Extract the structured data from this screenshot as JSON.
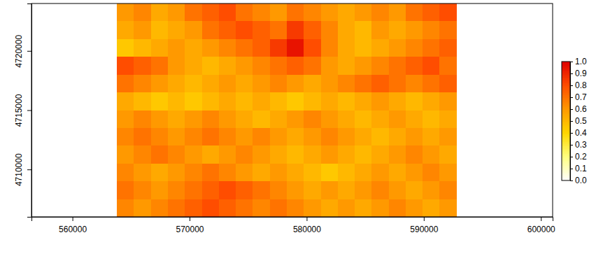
{
  "chart_data": {
    "type": "heatmap",
    "xlim": [
      556500,
      601000
    ],
    "ylim": [
      4706000,
      4724000
    ],
    "xticks": [
      560000,
      570000,
      580000,
      590000,
      600000
    ],
    "yticks": [
      4710000,
      4715000,
      4720000
    ],
    "raster": {
      "extent": [
        563800,
        592800,
        4706000,
        4724000
      ],
      "values": [
        [
          0.6,
          0.65,
          0.55,
          0.6,
          0.7,
          0.75,
          0.8,
          0.7,
          0.65,
          0.6,
          0.7,
          0.65,
          0.6,
          0.55,
          0.6,
          0.65,
          0.6,
          0.7,
          0.75,
          0.8
        ],
        [
          0.55,
          0.6,
          0.5,
          0.55,
          0.6,
          0.7,
          0.75,
          0.8,
          0.75,
          0.7,
          0.85,
          0.75,
          0.65,
          0.55,
          0.5,
          0.6,
          0.55,
          0.6,
          0.65,
          0.7
        ],
        [
          0.45,
          0.5,
          0.55,
          0.6,
          0.55,
          0.6,
          0.65,
          0.7,
          0.75,
          0.85,
          0.95,
          0.8,
          0.65,
          0.55,
          0.5,
          0.55,
          0.6,
          0.65,
          0.7,
          0.75
        ],
        [
          0.8,
          0.75,
          0.7,
          0.6,
          0.55,
          0.5,
          0.55,
          0.6,
          0.65,
          0.7,
          0.75,
          0.7,
          0.6,
          0.55,
          0.6,
          0.65,
          0.7,
          0.75,
          0.8,
          0.7
        ],
        [
          0.7,
          0.65,
          0.6,
          0.55,
          0.5,
          0.55,
          0.6,
          0.55,
          0.6,
          0.65,
          0.6,
          0.55,
          0.6,
          0.65,
          0.7,
          0.75,
          0.7,
          0.65,
          0.7,
          0.75
        ],
        [
          0.55,
          0.5,
          0.45,
          0.5,
          0.45,
          0.5,
          0.55,
          0.5,
          0.55,
          0.5,
          0.45,
          0.5,
          0.55,
          0.5,
          0.55,
          0.6,
          0.55,
          0.5,
          0.55,
          0.6
        ],
        [
          0.6,
          0.65,
          0.6,
          0.55,
          0.6,
          0.65,
          0.6,
          0.55,
          0.5,
          0.55,
          0.6,
          0.65,
          0.6,
          0.55,
          0.5,
          0.55,
          0.6,
          0.55,
          0.5,
          0.55
        ],
        [
          0.65,
          0.7,
          0.65,
          0.6,
          0.65,
          0.7,
          0.65,
          0.6,
          0.65,
          0.6,
          0.55,
          0.6,
          0.65,
          0.6,
          0.55,
          0.5,
          0.55,
          0.6,
          0.55,
          0.6
        ],
        [
          0.6,
          0.65,
          0.7,
          0.65,
          0.6,
          0.55,
          0.6,
          0.65,
          0.6,
          0.55,
          0.5,
          0.55,
          0.6,
          0.55,
          0.5,
          0.55,
          0.6,
          0.65,
          0.6,
          0.55
        ],
        [
          0.65,
          0.6,
          0.55,
          0.6,
          0.65,
          0.7,
          0.65,
          0.6,
          0.55,
          0.6,
          0.55,
          0.5,
          0.45,
          0.5,
          0.55,
          0.6,
          0.55,
          0.6,
          0.65,
          0.6
        ],
        [
          0.7,
          0.65,
          0.6,
          0.65,
          0.7,
          0.75,
          0.8,
          0.75,
          0.7,
          0.65,
          0.6,
          0.55,
          0.6,
          0.55,
          0.6,
          0.65,
          0.6,
          0.55,
          0.6,
          0.65
        ],
        [
          0.65,
          0.6,
          0.65,
          0.7,
          0.75,
          0.8,
          0.75,
          0.7,
          0.65,
          0.7,
          0.65,
          0.6,
          0.55,
          0.6,
          0.55,
          0.6,
          0.65,
          0.6,
          0.55,
          0.6
        ]
      ]
    },
    "colorbar": {
      "range": [
        0,
        1
      ],
      "ticks": [
        {
          "value": 0,
          "label": "0.0"
        },
        {
          "value": 0.1,
          "label": "0.1"
        },
        {
          "value": 0.2,
          "label": "0.2"
        },
        {
          "value": 0.3,
          "label": "0.3"
        },
        {
          "value": 0.4,
          "label": "0.4"
        },
        {
          "value": 0.5,
          "label": "0.5"
        },
        {
          "value": 0.6,
          "label": "0.6"
        },
        {
          "value": 0.7,
          "label": "0.7"
        },
        {
          "value": 0.8,
          "label": "0.8"
        },
        {
          "value": 0.9,
          "label": "0.9"
        },
        {
          "value": 1,
          "label": "1.0"
        }
      ]
    }
  }
}
